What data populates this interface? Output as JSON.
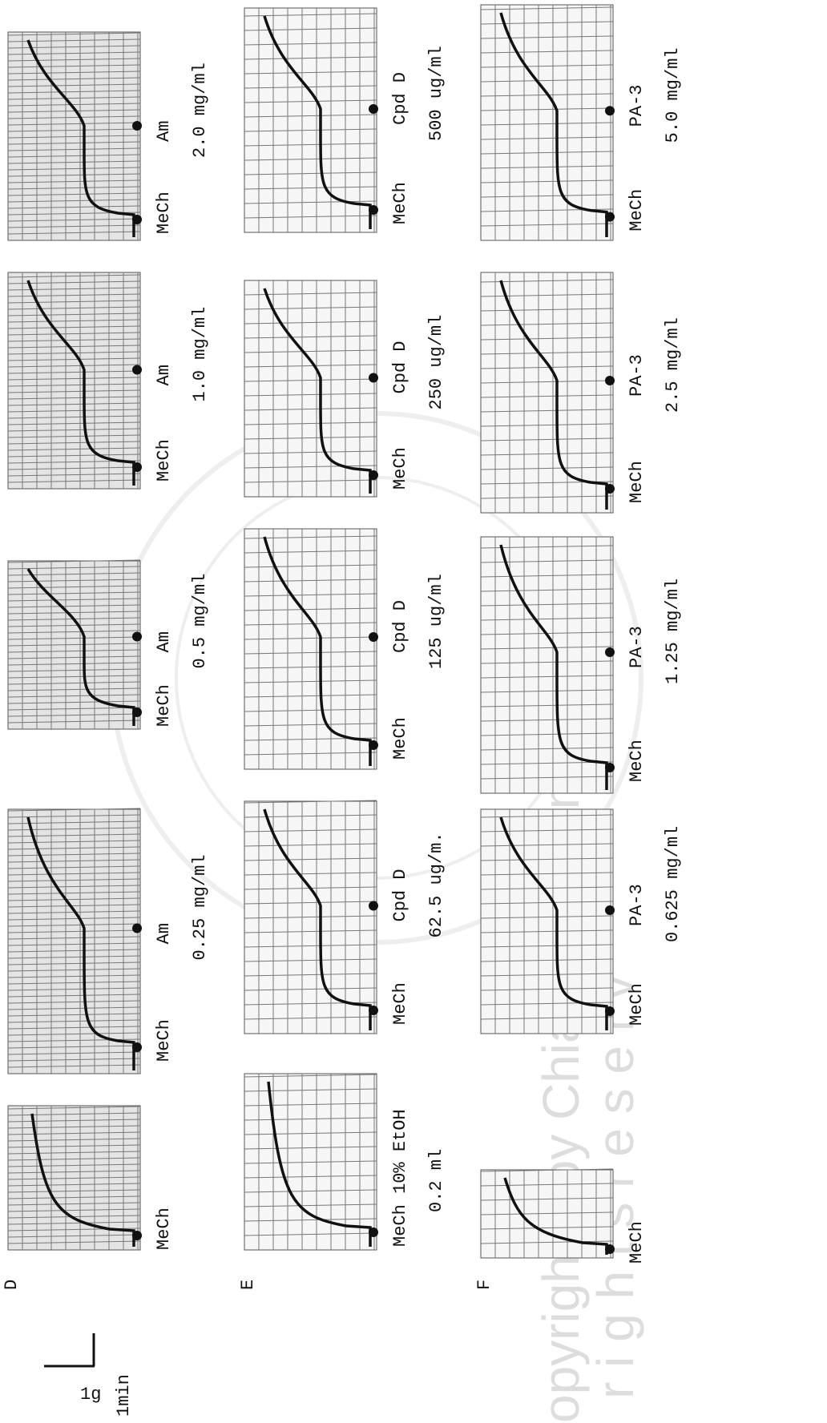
{
  "scale": {
    "force": "1g",
    "time": "1min"
  },
  "rows": [
    {
      "label": "D",
      "panels": [
        {
          "agents": [
            "MeCh"
          ]
        },
        {
          "agents": [
            "MeCh",
            "Am"
          ],
          "dose": "0.25 mg/ml"
        },
        {
          "agents": [
            "MeCh",
            "Am"
          ],
          "dose": "0.5 mg/ml"
        },
        {
          "agents": [
            "MeCh",
            "Am"
          ],
          "dose": "1.0 mg/ml"
        },
        {
          "agents": [
            "MeCh",
            "Am"
          ],
          "dose": "2.0 mg/ml"
        }
      ]
    },
    {
      "label": "E",
      "panels": [
        {
          "agents": [
            "MeCh 10% EtOH"
          ],
          "dose": "0.2 ml"
        },
        {
          "agents": [
            "MeCh",
            "Cpd D"
          ],
          "dose": "62.5 ug/m."
        },
        {
          "agents": [
            "MeCh",
            "Cpd D"
          ],
          "dose": "125 ug/ml"
        },
        {
          "agents": [
            "MeCh",
            "Cpd D"
          ],
          "dose": "250 ug/ml"
        },
        {
          "agents": [
            "MeCh",
            "Cpd D"
          ],
          "dose": "500 ug/ml"
        }
      ]
    },
    {
      "label": "F",
      "panels": [
        {
          "agents": [
            "MeCh"
          ]
        },
        {
          "agents": [
            "MeCh",
            "PA-3"
          ],
          "dose": "0.625 mg/ml"
        },
        {
          "agents": [
            "MeCh",
            "PA-3"
          ],
          "dose": "1.25 mg/ml"
        },
        {
          "agents": [
            "MeCh",
            "PA-3"
          ],
          "dose": "2.5 mg/ml"
        },
        {
          "agents": [
            "MeCh",
            "PA-3"
          ],
          "dose": "5.0 mg/ml"
        }
      ]
    }
  ],
  "watermark": {
    "line1": "opyright©    by Chiang Mai Unive",
    "line2": "r i g h t s   r e s e r v"
  }
}
